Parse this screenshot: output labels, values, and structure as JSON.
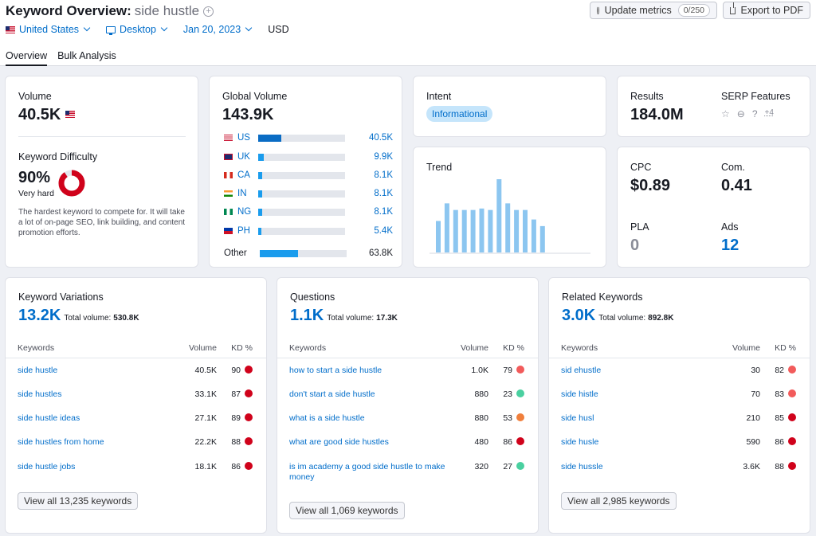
{
  "header": {
    "title": "Keyword Overview:",
    "keyword": "side hustle",
    "update_label": "Update metrics",
    "update_count": "0/250",
    "export_label": "Export to PDF",
    "country": "United States",
    "device": "Desktop",
    "date": "Jan 20, 2023",
    "currency": "USD",
    "tabs": [
      "Overview",
      "Bulk Analysis"
    ]
  },
  "volume": {
    "label": "Volume",
    "value": "40.5K"
  },
  "kd": {
    "label": "Keyword Difficulty",
    "value": "90%",
    "level": "Very hard",
    "percent": 90,
    "description": "The hardest keyword to compete for. It will take a lot of on-page SEO, link building, and content promotion efforts."
  },
  "global": {
    "label": "Global Volume",
    "value": "143.9K",
    "rows": [
      {
        "code": "US",
        "value": "40.5K",
        "share": 0.27
      },
      {
        "code": "UK",
        "value": "9.9K",
        "share": 0.06
      },
      {
        "code": "CA",
        "value": "8.1K",
        "share": 0.05
      },
      {
        "code": "IN",
        "value": "8.1K",
        "share": 0.05
      },
      {
        "code": "NG",
        "value": "8.1K",
        "share": 0.05
      },
      {
        "code": "PH",
        "value": "5.4K",
        "share": 0.04
      },
      {
        "code": "Other",
        "value": "63.8K",
        "share": 0.44
      }
    ]
  },
  "intent": {
    "label": "Intent",
    "value": "Informational"
  },
  "trend": {
    "label": "Trend",
    "values": [
      0.43,
      0.67,
      0.58,
      0.58,
      0.58,
      0.6,
      0.58,
      1.0,
      0.67,
      0.58,
      0.58,
      0.45,
      0.36
    ]
  },
  "results": {
    "label": "Results",
    "value": "184.0M",
    "serp_label": "SERP Features",
    "serp_more": "+4"
  },
  "metrics": {
    "cpc_label": "CPC",
    "cpc": "$0.89",
    "com_label": "Com.",
    "com": "0.41",
    "pla_label": "PLA",
    "pla": "0",
    "ads_label": "Ads",
    "ads": "12"
  },
  "colors": {
    "accent": "#006dca",
    "bar": "#1a9ced",
    "trend": "#8cc6f0",
    "kd_red": "#d0021b",
    "kd_orange": "#f07f3c",
    "kd_green": "#4ad0a0",
    "kd_salmon": "#f25b5b"
  },
  "panels": [
    {
      "title": "Keyword Variations",
      "count": "13.2K",
      "total_label": "Total volume:",
      "total": "530.8K",
      "col_kw": "Keywords",
      "col_vol": "Volume",
      "col_kd": "KD %",
      "rows": [
        {
          "kw": "side hustle",
          "vol": "40.5K",
          "kd": "90",
          "color": "#d0021b"
        },
        {
          "kw": "side hustles",
          "vol": "33.1K",
          "kd": "87",
          "color": "#d0021b"
        },
        {
          "kw": "side hustle ideas",
          "vol": "27.1K",
          "kd": "89",
          "color": "#d0021b"
        },
        {
          "kw": "side hustles from home",
          "vol": "22.2K",
          "kd": "88",
          "color": "#d0021b"
        },
        {
          "kw": "side hustle jobs",
          "vol": "18.1K",
          "kd": "86",
          "color": "#d0021b"
        }
      ],
      "view_all": "View all 13,235 keywords"
    },
    {
      "title": "Questions",
      "count": "1.1K",
      "total_label": "Total volume:",
      "total": "17.3K",
      "col_kw": "Keywords",
      "col_vol": "Volume",
      "col_kd": "KD %",
      "rows": [
        {
          "kw": "how to start a side hustle",
          "vol": "1.0K",
          "kd": "79",
          "color": "#f25b5b"
        },
        {
          "kw": "don't start a side hustle",
          "vol": "880",
          "kd": "23",
          "color": "#4ad0a0"
        },
        {
          "kw": "what is a side hustle",
          "vol": "880",
          "kd": "53",
          "color": "#f07f3c"
        },
        {
          "kw": "what are good side hustles",
          "vol": "480",
          "kd": "86",
          "color": "#d0021b"
        },
        {
          "kw": "is im academy a good side hustle to make money",
          "vol": "320",
          "kd": "27",
          "color": "#4ad0a0"
        }
      ],
      "view_all": "View all 1,069 keywords"
    },
    {
      "title": "Related Keywords",
      "count": "3.0K",
      "total_label": "Total volume:",
      "total": "892.8K",
      "col_kw": "Keywords",
      "col_vol": "Volume",
      "col_kd": "KD %",
      "rows": [
        {
          "kw": "sid ehustle",
          "vol": "30",
          "kd": "82",
          "color": "#f25b5b"
        },
        {
          "kw": "side histle",
          "vol": "70",
          "kd": "83",
          "color": "#f25b5b"
        },
        {
          "kw": "side husl",
          "vol": "210",
          "kd": "85",
          "color": "#d0021b"
        },
        {
          "kw": "side husle",
          "vol": "590",
          "kd": "86",
          "color": "#d0021b"
        },
        {
          "kw": "side hussle",
          "vol": "3.6K",
          "kd": "88",
          "color": "#d0021b"
        }
      ],
      "view_all": "View all 2,985 keywords"
    }
  ]
}
